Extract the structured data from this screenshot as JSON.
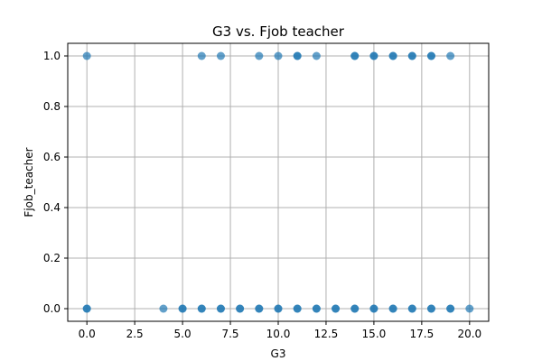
{
  "chart_data": {
    "type": "scatter",
    "title": "G3 vs. Fjob teacher",
    "xlabel": "G3",
    "ylabel": "Fjob_teacher",
    "xlim": [
      -1,
      21
    ],
    "ylim": [
      -0.05,
      1.05
    ],
    "xticks": [
      0.0,
      2.5,
      5.0,
      7.5,
      10.0,
      12.5,
      15.0,
      17.5,
      20.0
    ],
    "xtick_labels": [
      "0.0",
      "2.5",
      "5.0",
      "7.5",
      "10.0",
      "12.5",
      "15.0",
      "17.5",
      "20.0"
    ],
    "yticks": [
      0.0,
      0.2,
      0.4,
      0.6,
      0.8,
      1.0
    ],
    "ytick_labels": [
      "0.0",
      "0.2",
      "0.4",
      "0.6",
      "0.8",
      "1.0"
    ],
    "grid": true,
    "marker_color": "#1f77b4",
    "points": [
      {
        "x": 0,
        "y": 1
      },
      {
        "x": 6,
        "y": 1
      },
      {
        "x": 7,
        "y": 1
      },
      {
        "x": 9,
        "y": 1
      },
      {
        "x": 10,
        "y": 1
      },
      {
        "x": 11,
        "y": 1
      },
      {
        "x": 11,
        "y": 1
      },
      {
        "x": 12,
        "y": 1
      },
      {
        "x": 14,
        "y": 1
      },
      {
        "x": 14,
        "y": 1
      },
      {
        "x": 15,
        "y": 1
      },
      {
        "x": 15,
        "y": 1
      },
      {
        "x": 16,
        "y": 1
      },
      {
        "x": 16,
        "y": 1
      },
      {
        "x": 17,
        "y": 1
      },
      {
        "x": 17,
        "y": 1
      },
      {
        "x": 18,
        "y": 1
      },
      {
        "x": 18,
        "y": 1
      },
      {
        "x": 19,
        "y": 1
      },
      {
        "x": 0,
        "y": 0
      },
      {
        "x": 0,
        "y": 0
      },
      {
        "x": 4,
        "y": 0
      },
      {
        "x": 5,
        "y": 0
      },
      {
        "x": 5,
        "y": 0
      },
      {
        "x": 6,
        "y": 0
      },
      {
        "x": 6,
        "y": 0
      },
      {
        "x": 7,
        "y": 0
      },
      {
        "x": 7,
        "y": 0
      },
      {
        "x": 8,
        "y": 0
      },
      {
        "x": 8,
        "y": 0
      },
      {
        "x": 9,
        "y": 0
      },
      {
        "x": 9,
        "y": 0
      },
      {
        "x": 10,
        "y": 0
      },
      {
        "x": 10,
        "y": 0
      },
      {
        "x": 11,
        "y": 0
      },
      {
        "x": 11,
        "y": 0
      },
      {
        "x": 12,
        "y": 0
      },
      {
        "x": 12,
        "y": 0
      },
      {
        "x": 13,
        "y": 0
      },
      {
        "x": 13,
        "y": 0
      },
      {
        "x": 14,
        "y": 0
      },
      {
        "x": 14,
        "y": 0
      },
      {
        "x": 15,
        "y": 0
      },
      {
        "x": 15,
        "y": 0
      },
      {
        "x": 16,
        "y": 0
      },
      {
        "x": 16,
        "y": 0
      },
      {
        "x": 17,
        "y": 0
      },
      {
        "x": 17,
        "y": 0
      },
      {
        "x": 18,
        "y": 0
      },
      {
        "x": 18,
        "y": 0
      },
      {
        "x": 19,
        "y": 0
      },
      {
        "x": 19,
        "y": 0
      },
      {
        "x": 20,
        "y": 0
      }
    ]
  }
}
